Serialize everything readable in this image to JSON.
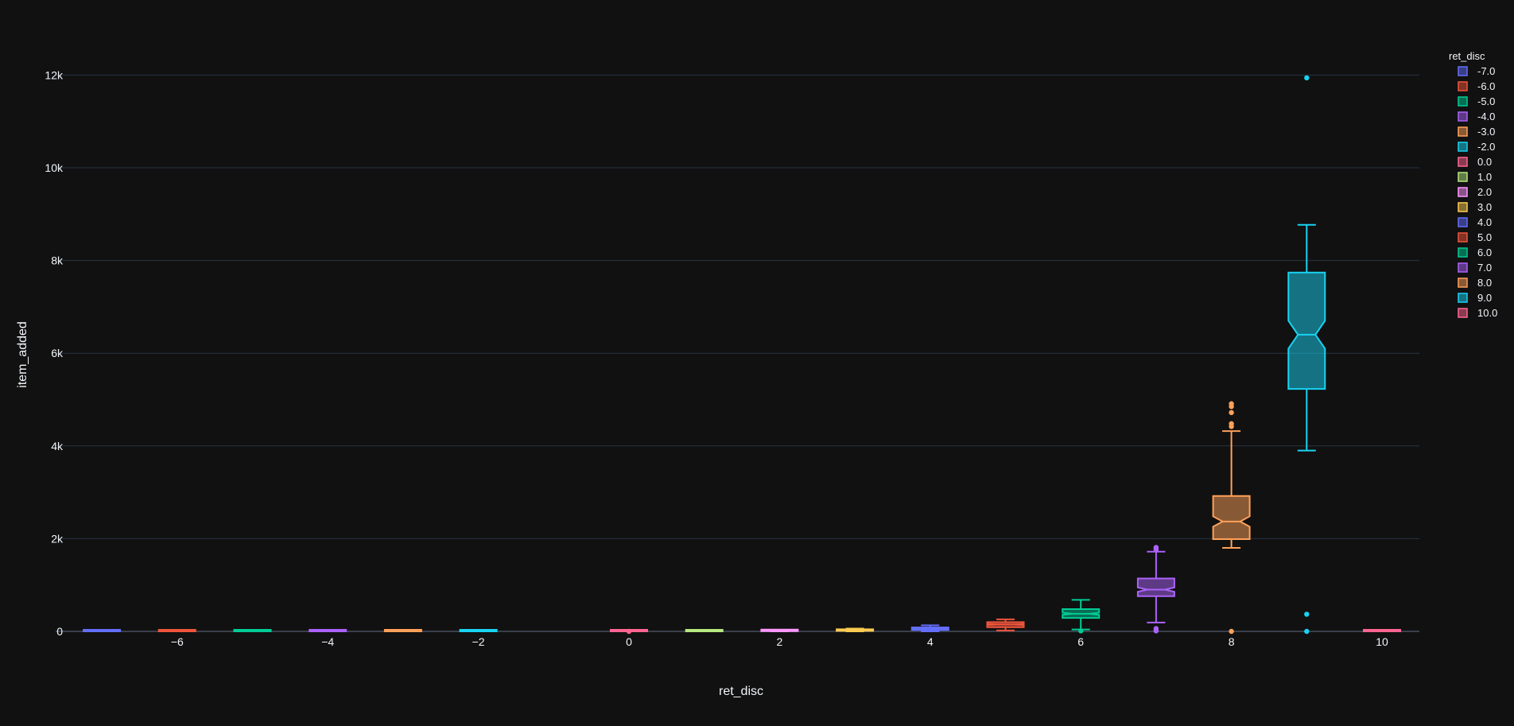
{
  "chart_data": {
    "type": "box",
    "notched": true,
    "title": "",
    "xlabel": "ret_disc",
    "ylabel": "item_added",
    "xlim": [
      -7.5,
      10.5
    ],
    "ylim": [
      -500,
      12500
    ],
    "x_ticks": [
      -6,
      -4,
      -2,
      0,
      2,
      4,
      6,
      8,
      10
    ],
    "x_tick_labels": [
      "−6",
      "−4",
      "−2",
      "0",
      "2",
      "4",
      "6",
      "8",
      "10"
    ],
    "y_ticks": [
      0,
      2000,
      4000,
      6000,
      8000,
      10000,
      12000
    ],
    "y_tick_labels": [
      "0",
      "2k",
      "4k",
      "6k",
      "8k",
      "10k",
      "12k"
    ],
    "grid": true,
    "legend_title": "ret_disc",
    "legend_position": "top-right",
    "series": [
      {
        "name": "-7.0",
        "x": -7,
        "color": "#636efa",
        "min": 0,
        "q1": 0,
        "median": 0,
        "q3": 5,
        "max": 10,
        "outliers": []
      },
      {
        "name": "-6.0",
        "x": -6,
        "color": "#EF553B",
        "min": 0,
        "q1": 0,
        "median": 0,
        "q3": 5,
        "max": 10,
        "outliers": []
      },
      {
        "name": "-5.0",
        "x": -5,
        "color": "#00cc96",
        "min": 0,
        "q1": 0,
        "median": 0,
        "q3": 5,
        "max": 10,
        "outliers": []
      },
      {
        "name": "-4.0",
        "x": -4,
        "color": "#ab63fa",
        "min": 0,
        "q1": 0,
        "median": 0,
        "q3": 5,
        "max": 10,
        "outliers": []
      },
      {
        "name": "-3.0",
        "x": -3,
        "color": "#FFA15A",
        "min": 0,
        "q1": 0,
        "median": 0,
        "q3": 5,
        "max": 10,
        "outliers": []
      },
      {
        "name": "-2.0",
        "x": -2,
        "color": "#19d3f3",
        "min": 0,
        "q1": 0,
        "median": 0,
        "q3": 5,
        "max": 10,
        "outliers": []
      },
      {
        "name": "0.0",
        "x": 0,
        "color": "#FF6692",
        "min": 0,
        "q1": 0,
        "median": 0,
        "q3": 5,
        "max": 10,
        "outliers": [
          0
        ]
      },
      {
        "name": "1.0",
        "x": 1,
        "color": "#B6E880",
        "min": 0,
        "q1": 0,
        "median": 5,
        "q3": 10,
        "max": 20,
        "outliers": []
      },
      {
        "name": "2.0",
        "x": 2,
        "color": "#FF97FF",
        "min": 0,
        "q1": 5,
        "median": 10,
        "q3": 20,
        "max": 30,
        "outliers": []
      },
      {
        "name": "3.0",
        "x": 3,
        "color": "#FECB52",
        "min": 0,
        "q1": 10,
        "median": 20,
        "q3": 35,
        "max": 60,
        "outliers": []
      },
      {
        "name": "4.0",
        "x": 4,
        "color": "#636efa",
        "min": 0,
        "q1": 30,
        "median": 55,
        "q3": 85,
        "max": 130,
        "outliers": []
      },
      {
        "name": "5.0",
        "x": 5,
        "color": "#EF553B",
        "min": 20,
        "q1": 90,
        "median": 150,
        "q3": 200,
        "max": 260,
        "outliers": []
      },
      {
        "name": "6.0",
        "x": 6,
        "color": "#00cc96",
        "min": 40,
        "q1": 290,
        "median": 380,
        "q3": 480,
        "max": 680,
        "outliers": [
          10
        ]
      },
      {
        "name": "7.0",
        "x": 7,
        "color": "#ab63fa",
        "min": 190,
        "q1": 760,
        "median": 900,
        "q3": 1140,
        "max": 1720,
        "outliers": [
          1760,
          1790,
          1810,
          60,
          30,
          10
        ]
      },
      {
        "name": "8.0",
        "x": 8,
        "color": "#FFA15A",
        "min": 1800,
        "q1": 1990,
        "median": 2370,
        "q3": 2920,
        "max": 4320,
        "outliers": [
          4420,
          4480,
          4720,
          4850,
          4910,
          0
        ]
      },
      {
        "name": "9.0",
        "x": 9,
        "color": "#19d3f3",
        "min": 3900,
        "q1": 5230,
        "median": 6400,
        "q3": 7740,
        "max": 8770,
        "outliers": [
          11940,
          370,
          0
        ]
      },
      {
        "name": "10.0",
        "x": 10,
        "color": "#FF6692",
        "min": 0,
        "q1": 0,
        "median": 0,
        "q3": 5,
        "max": 10,
        "outliers": []
      }
    ]
  }
}
